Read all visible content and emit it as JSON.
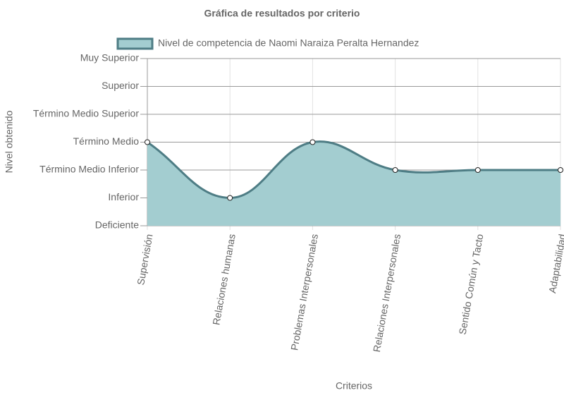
{
  "chart_data": {
    "type": "line",
    "title": "Gráfica de resultados por criterio",
    "x_label": "Criterios",
    "y_label": "Nivel obtenido",
    "categories": [
      "Supervisión",
      "Relaciones humanas",
      "Problemas Interpersonales",
      "Relaciones Interpersonales",
      "Sentido Común y Tacto",
      "Adaptabilidad"
    ],
    "series": [
      {
        "name": "Nivel de competencia de Naomi Naraiza Peralta Hernandez",
        "color": "#4e7d85",
        "fill": "#a3cdd0",
        "values": [
          3,
          1,
          3,
          2,
          2,
          2
        ]
      }
    ],
    "ylim": [
      0,
      6
    ],
    "yticks": [
      {
        "value": 0,
        "label": "Deficiente"
      },
      {
        "value": 1,
        "label": "Inferior"
      },
      {
        "value": 2,
        "label": "Término Medio Inferior"
      },
      {
        "value": 3,
        "label": "Término Medio"
      },
      {
        "value": 4,
        "label": "Término Medio Superior"
      },
      {
        "value": 5,
        "label": "Superior"
      },
      {
        "value": 6,
        "label": "Muy Superior"
      }
    ],
    "grid": true,
    "legend": "top"
  }
}
